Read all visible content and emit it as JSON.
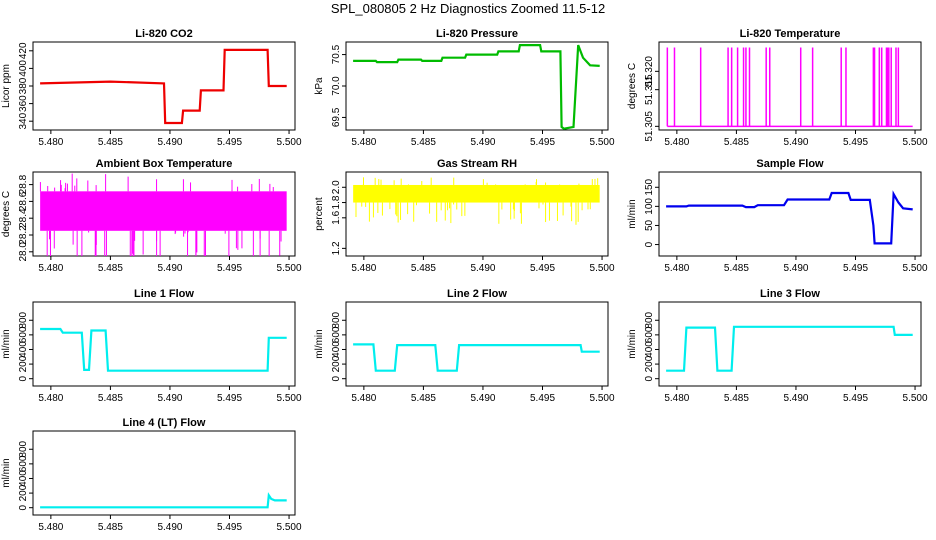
{
  "page": {
    "title": "SPL_080805  2 Hz Diagnostics Zoomed 11.5-12"
  },
  "chart_data": [
    {
      "type": "line",
      "title": "Li-820 CO2",
      "ylabel": "Licor ppm",
      "color": "#ee0000",
      "xlim": [
        5.4785,
        5.5005
      ],
      "ylim": [
        330,
        430
      ],
      "xticks": [
        "5.480",
        "5.485",
        "5.490",
        "5.495",
        "5.500"
      ],
      "yticks": [
        340,
        360,
        380,
        400,
        420
      ],
      "series": [
        {
          "x": [
            5.4791,
            5.485,
            5.4895,
            5.4896,
            5.491,
            5.4911,
            5.4925,
            5.4926,
            5.4945,
            5.4946,
            5.4982,
            5.4983,
            5.4998
          ],
          "y": [
            383,
            385,
            383,
            338,
            338,
            352,
            352,
            375,
            375,
            421,
            421,
            380,
            380
          ]
        }
      ]
    },
    {
      "type": "line",
      "title": "Li-820 Pressure",
      "ylabel": "kPa",
      "color": "#00bb00",
      "xlim": [
        5.4785,
        5.5005
      ],
      "ylim": [
        69.3,
        70.7
      ],
      "xticks": [
        "5.480",
        "5.485",
        "5.490",
        "5.495",
        "5.500"
      ],
      "yticks": [
        "69.5",
        "70.0",
        "70.5"
      ],
      "series": [
        {
          "x": [
            5.4791,
            5.481,
            5.4811,
            5.4828,
            5.4829,
            5.4848,
            5.4849,
            5.4865,
            5.4866,
            5.4885,
            5.4886,
            5.4912,
            5.4913,
            5.493,
            5.4931,
            5.4948,
            5.4949,
            5.4965,
            5.4966,
            5.4968,
            5.4976,
            5.498,
            5.4984,
            5.499,
            5.4998
          ],
          "y": [
            70.4,
            70.4,
            70.38,
            70.38,
            70.42,
            70.42,
            70.4,
            70.4,
            70.45,
            70.45,
            70.5,
            70.5,
            70.55,
            70.55,
            70.65,
            70.65,
            70.55,
            70.55,
            69.35,
            69.32,
            69.35,
            70.65,
            70.45,
            70.33,
            70.32
          ]
        }
      ]
    },
    {
      "type": "line",
      "title": "Li-820 Temperature",
      "ylabel": "degrees C",
      "color": "#ff00ff",
      "xlim": [
        5.4785,
        5.5005
      ],
      "ylim": [
        51.304,
        51.328
      ],
      "xticks": [
        "5.480",
        "5.485",
        "5.490",
        "5.495",
        "5.500"
      ],
      "yticks": [
        "51.305",
        "51.315",
        "51.320"
      ],
      "series": [
        {
          "x": [
            5.4792,
            5.4798,
            5.482,
            5.4843,
            5.4846,
            5.4851,
            5.4856,
            5.4858,
            5.4861,
            5.4875,
            5.4878,
            5.4904,
            5.4914,
            5.4938,
            5.4942,
            5.4965,
            5.4966,
            5.497,
            5.4972,
            5.4976,
            5.4977,
            5.4978,
            5.498,
            5.4984,
            5.4986
          ],
          "y": [
            51.3265,
            51.3265,
            51.3265,
            51.3265,
            51.3265,
            51.3265,
            51.3265,
            51.3265,
            51.3265,
            51.3265,
            51.3265,
            51.3265,
            51.3265,
            51.3265,
            51.3265,
            51.3265,
            51.3265,
            51.3265,
            51.3265,
            51.3265,
            51.3265,
            51.3265,
            51.3265,
            51.3265,
            51.3265
          ],
          "base": 51.305
        }
      ]
    },
    {
      "type": "line",
      "title": "Ambient Box Temperature",
      "ylabel": "degrees C",
      "color": "#ff00ff",
      "xlim": [
        5.4785,
        5.5005
      ],
      "ylim": [
        27.95,
        28.95
      ],
      "xticks": [
        "5.480",
        "5.485",
        "5.490",
        "5.495",
        "5.500"
      ],
      "yticks": [
        "28.0",
        "28.2",
        "28.4",
        "28.6",
        "28.8"
      ],
      "series": [
        {
          "x": [
            5.4791,
            5.4998
          ],
          "y": [
            28.5,
            28.5
          ],
          "band": [
            28.25,
            28.72
          ]
        }
      ]
    },
    {
      "type": "line",
      "title": "Gas Stream RH",
      "ylabel": "percent",
      "color": "#ffff00",
      "xlim": [
        5.4785,
        5.5005
      ],
      "ylim": [
        1.1,
        2.2
      ],
      "xticks": [
        "5.480",
        "5.485",
        "5.490",
        "5.495",
        "5.500"
      ],
      "yticks": [
        "1.2",
        "1.6",
        "1.8",
        "2.0"
      ],
      "series": [
        {
          "x": [
            5.4791,
            5.4998
          ],
          "y": [
            1.9,
            1.9
          ],
          "band": [
            1.8,
            2.03
          ]
        }
      ]
    },
    {
      "type": "line",
      "title": "Sample Flow",
      "ylabel": "ml/min",
      "color": "#0000ee",
      "xlim": [
        5.4785,
        5.5005
      ],
      "ylim": [
        -30,
        190
      ],
      "xticks": [
        "5.480",
        "5.485",
        "5.490",
        "5.495",
        "5.500"
      ],
      "yticks": [
        0,
        50,
        100,
        150
      ],
      "series": [
        {
          "x": [
            5.4791,
            5.4808,
            5.481,
            5.4855,
            5.4858,
            5.4865,
            5.4868,
            5.489,
            5.4893,
            5.4928,
            5.493,
            5.4944,
            5.4946,
            5.4962,
            5.4965,
            5.4966,
            5.498,
            5.4982,
            5.4986,
            5.499,
            5.4998
          ],
          "y": [
            100,
            100,
            102,
            102,
            98,
            98,
            103,
            103,
            118,
            118,
            135,
            135,
            117,
            117,
            50,
            3,
            3,
            132,
            110,
            95,
            92
          ]
        }
      ]
    },
    {
      "type": "line",
      "title": "Line 1 Flow",
      "ylabel": "ml/min",
      "color": "#00eeee",
      "xlim": [
        5.4785,
        5.5005
      ],
      "ylim": [
        -100,
        1050
      ],
      "xticks": [
        "5.480",
        "5.485",
        "5.490",
        "5.495",
        "5.500"
      ],
      "yticks": [
        0,
        200,
        400,
        600,
        800
      ],
      "series": [
        {
          "x": [
            5.4791,
            5.4808,
            5.481,
            5.4826,
            5.4828,
            5.4832,
            5.4834,
            5.4846,
            5.4848,
            5.488,
            5.4982,
            5.4983,
            5.4998
          ],
          "y": [
            680,
            680,
            630,
            630,
            120,
            120,
            660,
            660,
            110,
            110,
            110,
            560,
            560
          ]
        }
      ]
    },
    {
      "type": "line",
      "title": "Line 2 Flow",
      "ylabel": "ml/min",
      "color": "#00eeee",
      "xlim": [
        5.4785,
        5.5005
      ],
      "ylim": [
        -100,
        1050
      ],
      "xticks": [
        "5.480",
        "5.485",
        "5.490",
        "5.495",
        "5.500"
      ],
      "yticks": [
        0,
        200,
        400,
        600,
        800
      ],
      "series": [
        {
          "x": [
            5.4791,
            5.4808,
            5.481,
            5.4826,
            5.4828,
            5.486,
            5.4862,
            5.4878,
            5.488,
            5.4982,
            5.4983,
            5.4998
          ],
          "y": [
            470,
            470,
            110,
            110,
            460,
            460,
            110,
            110,
            460,
            460,
            370,
            370
          ]
        }
      ]
    },
    {
      "type": "line",
      "title": "Line 3 Flow",
      "ylabel": "ml/min",
      "color": "#00eeee",
      "xlim": [
        5.4785,
        5.5005
      ],
      "ylim": [
        -100,
        1050
      ],
      "xticks": [
        "5.480",
        "5.485",
        "5.490",
        "5.495",
        "5.500"
      ],
      "yticks": [
        0,
        200,
        400,
        600,
        800
      ],
      "series": [
        {
          "x": [
            5.4791,
            5.4806,
            5.4808,
            5.4832,
            5.4834,
            5.4846,
            5.4848,
            5.4982,
            5.4983,
            5.4998
          ],
          "y": [
            110,
            110,
            700,
            700,
            110,
            110,
            710,
            710,
            600,
            600
          ]
        }
      ]
    },
    {
      "type": "line",
      "title": "Line 4 (LT) Flow",
      "ylabel": "ml/min",
      "color": "#00eeee",
      "xlim": [
        5.4785,
        5.5005
      ],
      "ylim": [
        -100,
        1050
      ],
      "xticks": [
        "5.480",
        "5.485",
        "5.490",
        "5.495",
        "5.500"
      ],
      "yticks": [
        0,
        200,
        400,
        600,
        800
      ],
      "series": [
        {
          "x": [
            5.4791,
            5.4982,
            5.4983,
            5.4985,
            5.4988,
            5.4998
          ],
          "y": [
            5,
            5,
            170,
            120,
            100,
            100
          ]
        }
      ]
    }
  ]
}
